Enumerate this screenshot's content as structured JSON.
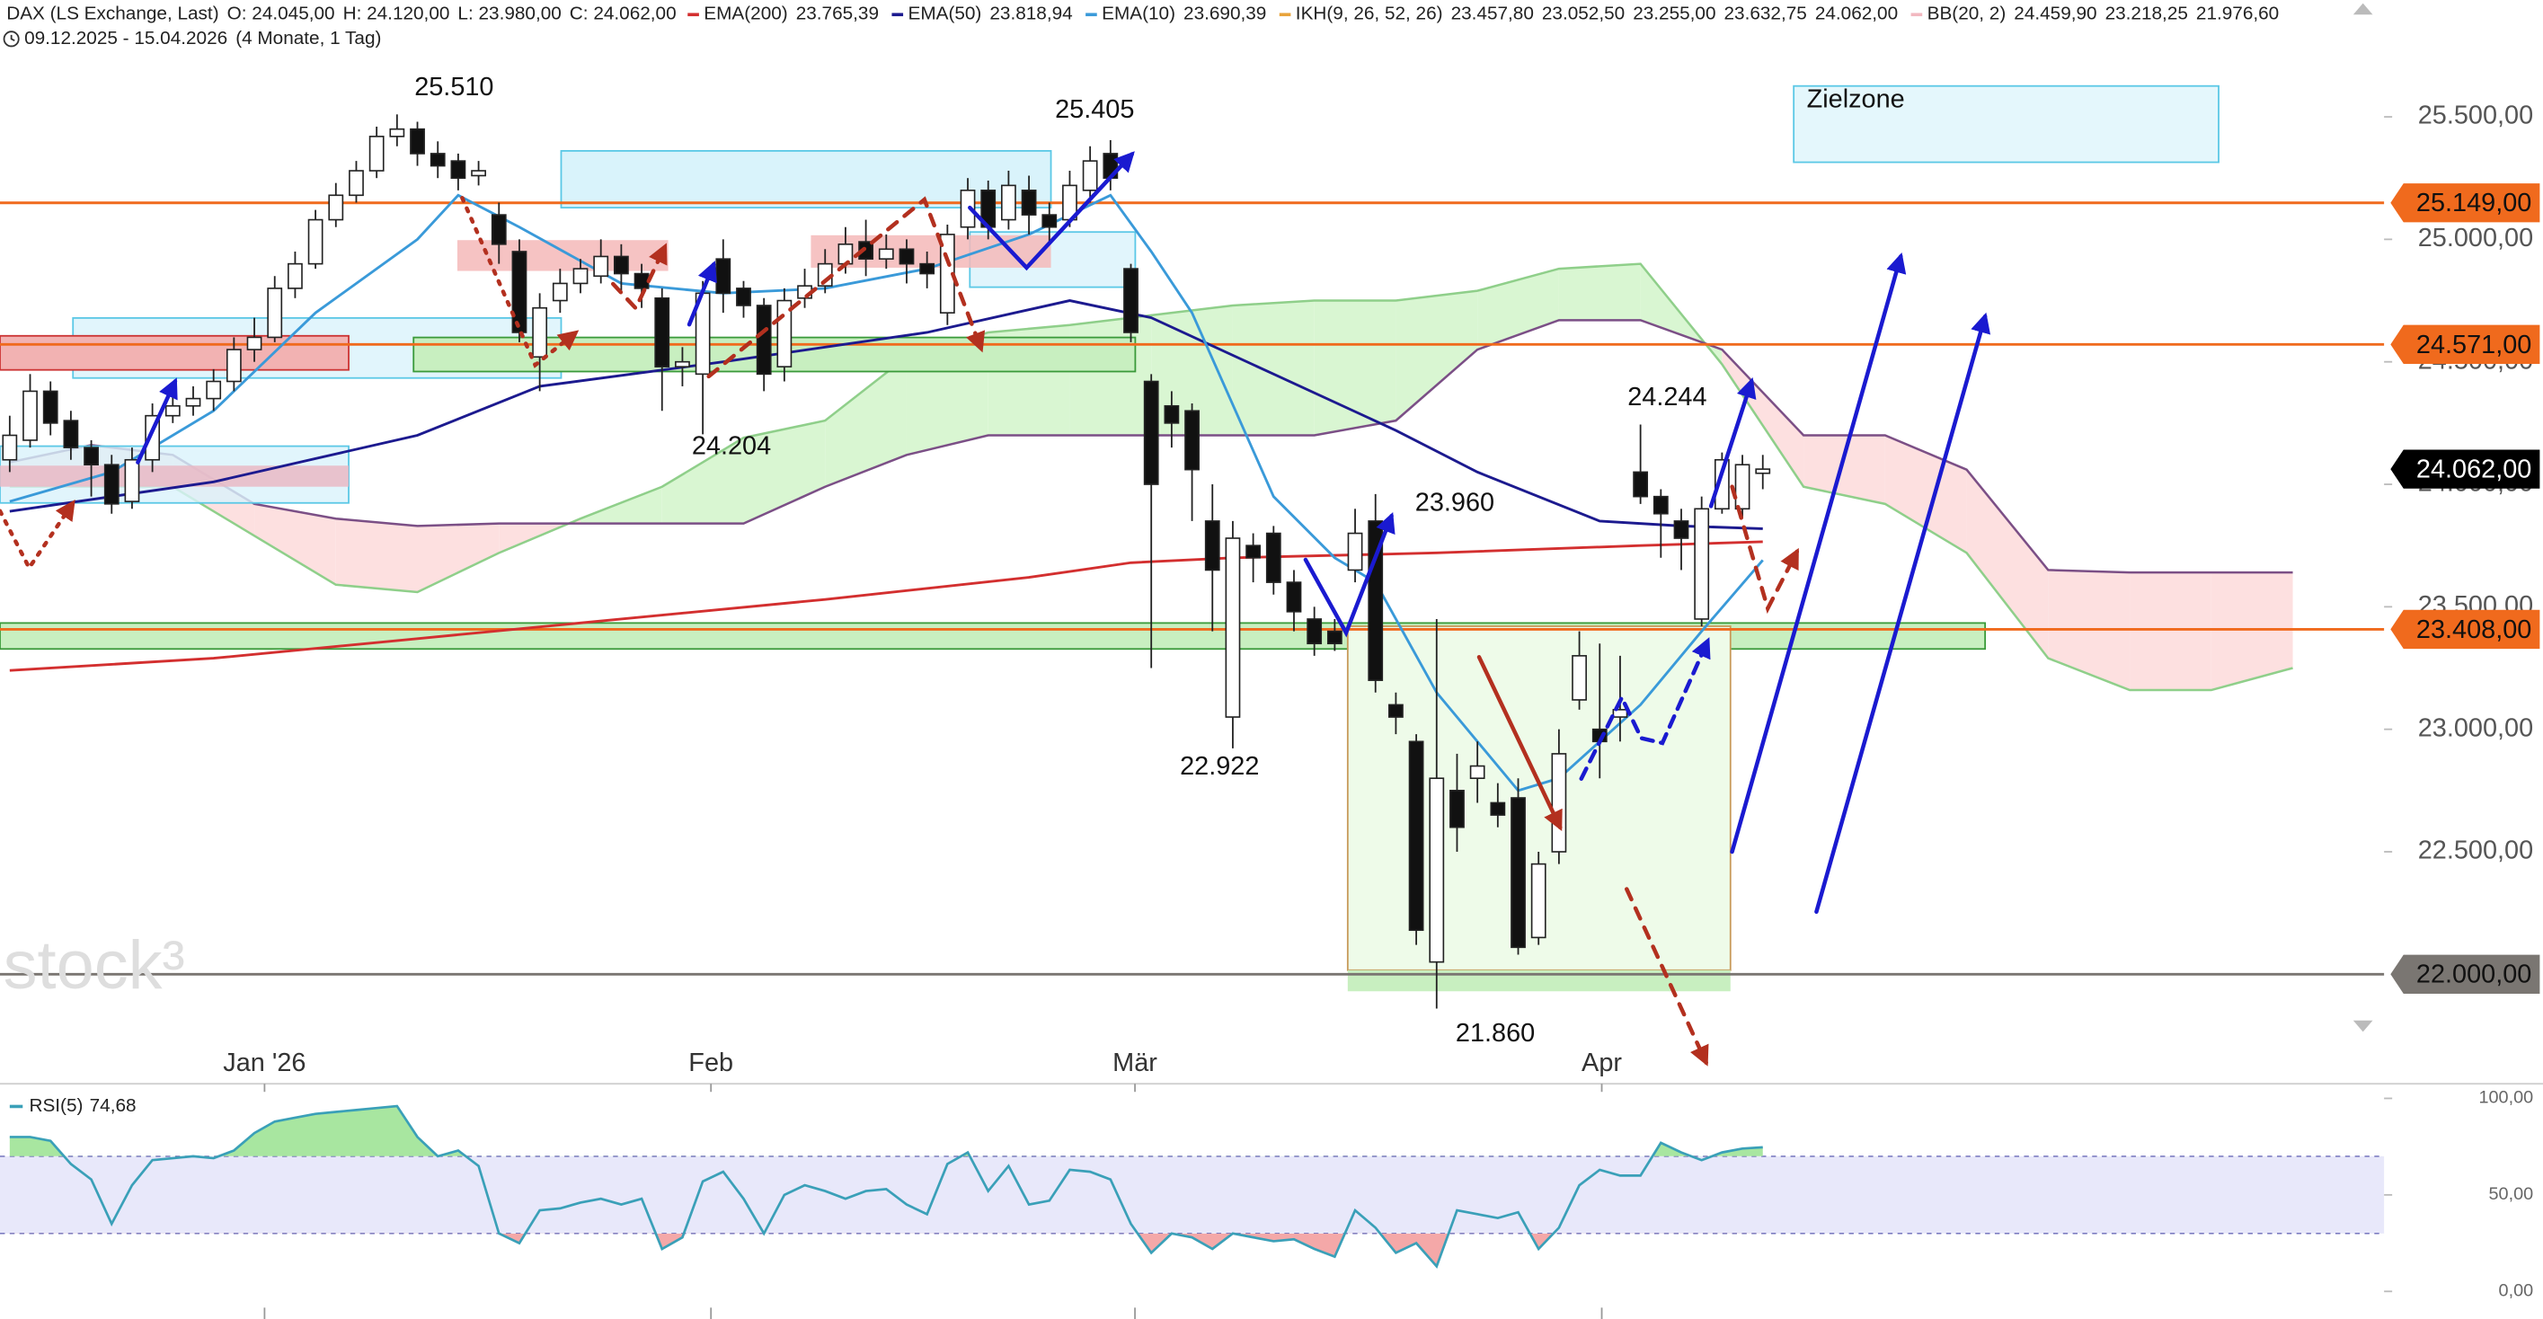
{
  "header": {
    "symbol": "DAX (LS Exchange, Last)",
    "ohlc": [
      "O: 24.045,00",
      "H: 24.120,00",
      "L: 23.980,00",
      "C: 24.062,00"
    ],
    "range": "09.12.2025 - 15.04.2026",
    "span": "(4 Monate, 1 Tag)"
  },
  "indicators": [
    {
      "name": "IKH(9, 26, 52, 26)",
      "color": "#e8a33a",
      "values": [
        "23.457,80",
        "23.052,50",
        "23.255,00",
        "23.632,75",
        "24.062,00"
      ],
      "value_colors": [
        "#e8a33a",
        "#3fa9c9",
        "#7a4f86",
        "#7a4f86",
        "#8aa040"
      ]
    },
    {
      "name": "BB(20, 2)",
      "color": "#f2b8c0",
      "values": [
        "24.459,90",
        "23.218,25",
        "21.976,60"
      ],
      "value_colors": [
        "#f2b8c0",
        "#f2b8c0",
        "#f2b8c0"
      ]
    }
  ],
  "chart_data": [
    {
      "type": "candlestick",
      "xlim": [
        0,
        116
      ],
      "ylim": [
        21553,
        25977
      ],
      "xticks": [
        {
          "value": 12.5,
          "label": "Jan '26"
        },
        {
          "value": 34.4,
          "label": "Feb"
        },
        {
          "value": 55.2,
          "label": "Mär"
        },
        {
          "value": 78.1,
          "label": "Apr"
        }
      ],
      "yticks": [
        {
          "value": 25500,
          "label": "25.500,00"
        },
        {
          "value": 25000,
          "label": "25.000,00"
        },
        {
          "value": 24500,
          "label": "24.500,00"
        },
        {
          "value": 24000,
          "label": "24.000,00"
        },
        {
          "value": 23500,
          "label": "23.500,00"
        },
        {
          "value": 23000,
          "label": "23.000,00"
        },
        {
          "value": 22500,
          "label": "22.500,00"
        }
      ],
      "up_color": "#ffffff",
      "down_color": "#111111",
      "open": [
        24100,
        24180,
        24380,
        24260,
        24150,
        24080,
        23930,
        24100,
        24280,
        24320,
        24350,
        24420,
        24550,
        24600,
        24800,
        24900,
        25080,
        25180,
        25280,
        25420,
        25450,
        25350,
        25320,
        25260,
        25100,
        24950,
        24520,
        24750,
        24820,
        24850,
        24930,
        24860,
        24760,
        24480,
        24450,
        24920,
        24800,
        24730,
        24480,
        24760,
        24810,
        24900,
        24990,
        24920,
        24960,
        24900,
        24700,
        25050,
        25200,
        25080,
        25200,
        25100,
        25080,
        25200,
        25350,
        24880,
        24420,
        24320,
        24300,
        23850,
        23050,
        23750,
        23800,
        23600,
        23450,
        23400,
        23650,
        23850,
        23100,
        22950,
        22050,
        22750,
        22800,
        22700,
        22720,
        22150,
        22500,
        23120,
        23000,
        23050,
        24050,
        23950,
        23850,
        23450,
        23900,
        23900,
        24045
      ],
      "high": [
        24280,
        24450,
        24420,
        24300,
        24180,
        24120,
        24150,
        24330,
        24380,
        24400,
        24470,
        24600,
        24680,
        24850,
        24950,
        25120,
        25230,
        25320,
        25460,
        25510,
        25480,
        25400,
        25350,
        25320,
        25150,
        25000,
        24780,
        24880,
        24920,
        25000,
        24980,
        24900,
        24800,
        24560,
        24830,
        25000,
        24830,
        24760,
        24800,
        24880,
        24960,
        25050,
        25080,
        25020,
        25000,
        24950,
        25060,
        25250,
        25240,
        25280,
        25260,
        25150,
        25280,
        25380,
        25405,
        24900,
        24450,
        24380,
        24330,
        24000,
        23850,
        23800,
        23830,
        23650,
        23500,
        23450,
        23900,
        23960,
        23150,
        22980,
        23450,
        22900,
        22950,
        22780,
        22800,
        22500,
        23000,
        23400,
        23350,
        23300,
        24244,
        23980,
        23900,
        23950,
        24130,
        24120,
        24120
      ],
      "low": [
        24050,
        24150,
        24200,
        24100,
        23950,
        23880,
        23900,
        24050,
        24250,
        24280,
        24300,
        24380,
        24500,
        24580,
        24760,
        24880,
        25050,
        25150,
        25250,
        25380,
        25300,
        25250,
        25200,
        25220,
        24900,
        24580,
        24380,
        24700,
        24780,
        24820,
        24780,
        24720,
        24300,
        24400,
        24204,
        24700,
        24680,
        24380,
        24420,
        24720,
        24780,
        24860,
        24850,
        24880,
        24820,
        24800,
        24650,
        25000,
        25000,
        25040,
        25020,
        24980,
        25050,
        25150,
        25200,
        24580,
        23250,
        24150,
        23850,
        23400,
        22922,
        23600,
        23550,
        23400,
        23300,
        23320,
        23600,
        23150,
        22980,
        22120,
        21860,
        22500,
        22700,
        22600,
        22080,
        22120,
        22450,
        23080,
        22800,
        22950,
        23920,
        23700,
        23650,
        23420,
        23880,
        23860,
        23980
      ],
      "close": [
        24200,
        24380,
        24250,
        24150,
        24080,
        23920,
        24100,
        24280,
        24320,
        24350,
        24420,
        24550,
        24600,
        24800,
        24900,
        25080,
        25180,
        25280,
        25420,
        25450,
        25350,
        25300,
        25250,
        25280,
        24980,
        24620,
        24720,
        24820,
        24880,
        24930,
        24860,
        24800,
        24480,
        24500,
        24780,
        24780,
        24730,
        24450,
        24750,
        24810,
        24900,
        24980,
        24920,
        24960,
        24900,
        24860,
        25020,
        25200,
        25050,
        25220,
        25100,
        25050,
        25220,
        25320,
        25250,
        24620,
        24000,
        24250,
        24060,
        23650,
        23780,
        23700,
        23600,
        23480,
        23350,
        23350,
        23800,
        23200,
        23050,
        22180,
        22800,
        22600,
        22850,
        22650,
        22110,
        22450,
        22900,
        23300,
        22950,
        23080,
        23950,
        23880,
        23780,
        23900,
        24100,
        24080,
        24062
      ],
      "series": [
        {
          "name": "EMA(200)",
          "color": "#d32f2f",
          "last_label": "23.765,39",
          "x": [
            0,
            10,
            20,
            30,
            40,
            50,
            55,
            60,
            70,
            80,
            86
          ],
          "values": [
            23240,
            23290,
            23370,
            23450,
            23530,
            23620,
            23680,
            23700,
            23720,
            23750,
            23765.39
          ]
        },
        {
          "name": "EMA(50)",
          "color": "#1c1a8f",
          "last_label": "23.818,94",
          "x": [
            0,
            10,
            20,
            26,
            35,
            45,
            52,
            56,
            62,
            68,
            72,
            78,
            82,
            86
          ],
          "values": [
            23890,
            24010,
            24200,
            24400,
            24500,
            24620,
            24750,
            24680,
            24450,
            24220,
            24050,
            23850,
            23830,
            23818.94
          ]
        },
        {
          "name": "EMA(10)",
          "color": "#3a9ad9",
          "last_label": "23.690,39",
          "x": [
            0,
            5,
            10,
            15,
            20,
            22,
            25,
            30,
            35,
            40,
            45,
            50,
            54,
            56,
            58,
            62,
            65,
            67,
            70,
            74,
            76,
            80,
            83,
            86
          ],
          "values": [
            23930,
            24050,
            24300,
            24700,
            25000,
            25180,
            25050,
            24820,
            24780,
            24800,
            24880,
            25020,
            25180,
            24950,
            24700,
            23950,
            23700,
            23600,
            23150,
            22750,
            22800,
            23100,
            23400,
            23690.39
          ]
        }
      ],
      "cloud": {
        "x": [
          0,
          4,
          8,
          12,
          16,
          20,
          24,
          28,
          32,
          36,
          40,
          44,
          48,
          52,
          56,
          60,
          64,
          68,
          72,
          76,
          80,
          84,
          88,
          92,
          96,
          100,
          104,
          108,
          112
        ],
        "span_a": [
          23990,
          23990,
          23990,
          23790,
          23590,
          23560,
          23720,
          23860,
          23990,
          24190,
          24260,
          24520,
          24620,
          24650,
          24690,
          24730,
          24750,
          24750,
          24790,
          24880,
          24900,
          24490,
          23990,
          23920,
          23720,
          23290,
          23160,
          23160,
          23250
        ],
        "span_b": [
          24090,
          24160,
          24120,
          23920,
          23860,
          23830,
          23840,
          23840,
          23840,
          23840,
          23990,
          24120,
          24200,
          24200,
          24200,
          24200,
          24200,
          24260,
          24550,
          24670,
          24670,
          24550,
          24200,
          24200,
          24060,
          23650,
          23640,
          23640,
          23640
        ],
        "span_a_color": "#8fcf8a",
        "span_b_color": "#7b4f86",
        "bull_fill": "#d9f6d2",
        "bear_fill": "#fde0e0"
      },
      "levels": [
        {
          "value": 25149,
          "label": "25.149,00",
          "color": "#f06a1d",
          "text_color": "#111111"
        },
        {
          "value": 24571,
          "label": "24.571,00",
          "color": "#f06a1d",
          "text_color": "#111111"
        },
        {
          "value": 23408,
          "label": "23.408,00",
          "color": "#f06a1d",
          "text_color": "#111111"
        },
        {
          "value": 22000,
          "label": "22.000,00",
          "color": "#7a7672",
          "text_color": "#111111"
        }
      ],
      "last_price": {
        "value": 24062,
        "label": "24.062,00",
        "color": "#000000",
        "text_color": "#ffffff"
      },
      "annotations": [
        {
          "value": 25510,
          "label": "25.510"
        },
        {
          "value": 25405,
          "label": "25.405"
        },
        {
          "value": 24204,
          "label": "24.204"
        },
        {
          "value": 22922,
          "label": "22.922"
        },
        {
          "value": 23960,
          "label": "23.960"
        },
        {
          "value": 24244,
          "label": "24.244"
        },
        {
          "value": 21860,
          "label": "21.860"
        }
      ],
      "zone_label": "Zielzone",
      "watermark": "stock³"
    },
    {
      "type": "line",
      "xlim": [
        0,
        116
      ],
      "ylim": [
        -14.3,
        105.9
      ],
      "yticks": [
        {
          "value": 100,
          "label": "100,00"
        },
        {
          "value": 50,
          "label": "50,00"
        },
        {
          "value": 0,
          "label": "0,00"
        }
      ],
      "bands": [
        30,
        70
      ],
      "band_color": "#e8e8fa",
      "overbought_color": "#a8e6a0",
      "oversold_color": "#f4a8a8",
      "series": [
        {
          "name": "RSI(5)",
          "color": "#3aa0b8",
          "last_label": "74,68",
          "values": [
            80,
            80,
            78,
            66,
            58,
            35,
            55,
            68,
            69,
            70,
            69,
            73,
            82,
            88,
            90,
            92,
            93,
            94,
            95,
            96,
            80,
            70,
            73,
            65,
            30,
            25,
            42,
            43,
            46,
            48,
            45,
            48,
            22,
            28,
            57,
            62,
            48,
            30,
            50,
            55,
            52,
            48,
            52,
            53,
            45,
            40,
            66,
            72,
            52,
            65,
            45,
            47,
            63,
            62,
            58,
            35,
            20,
            30,
            28,
            22,
            30,
            28,
            26,
            27,
            22,
            18,
            42,
            33,
            20,
            25,
            13,
            42,
            40,
            38,
            41,
            22,
            33,
            55,
            63,
            60,
            60,
            77,
            72,
            68,
            72,
            74,
            74.68
          ]
        }
      ]
    }
  ]
}
